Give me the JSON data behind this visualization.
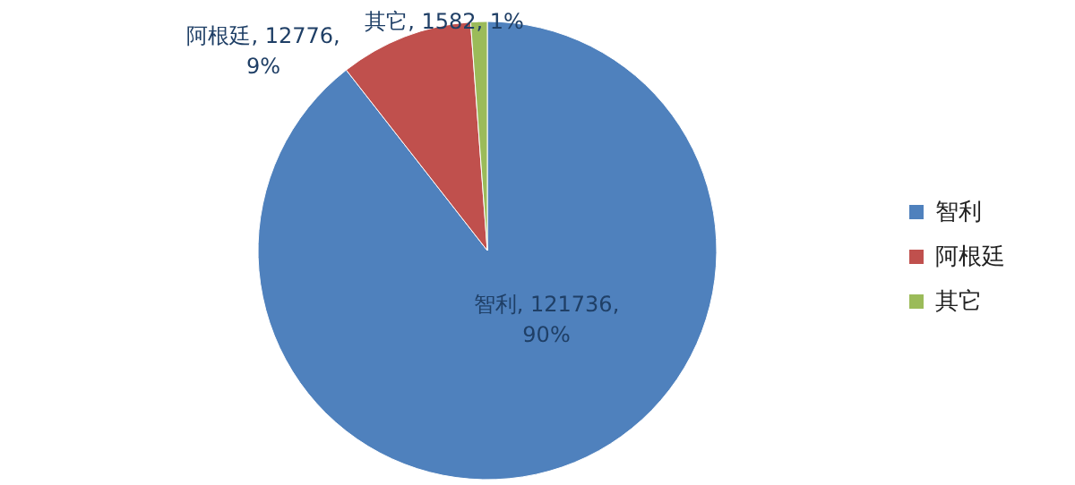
{
  "chart_data": {
    "type": "pie",
    "categories": [
      "智利",
      "阿根廷",
      "其它"
    ],
    "values": [
      121736,
      12776,
      1582
    ],
    "colors": [
      "#4f81bd",
      "#c0504d",
      "#9bbb59"
    ],
    "value_labels": [
      "智利, 121736, 90%",
      "阿根廷, 12776, 9%",
      "其它, 1582, 1%"
    ],
    "legend": "right"
  }
}
